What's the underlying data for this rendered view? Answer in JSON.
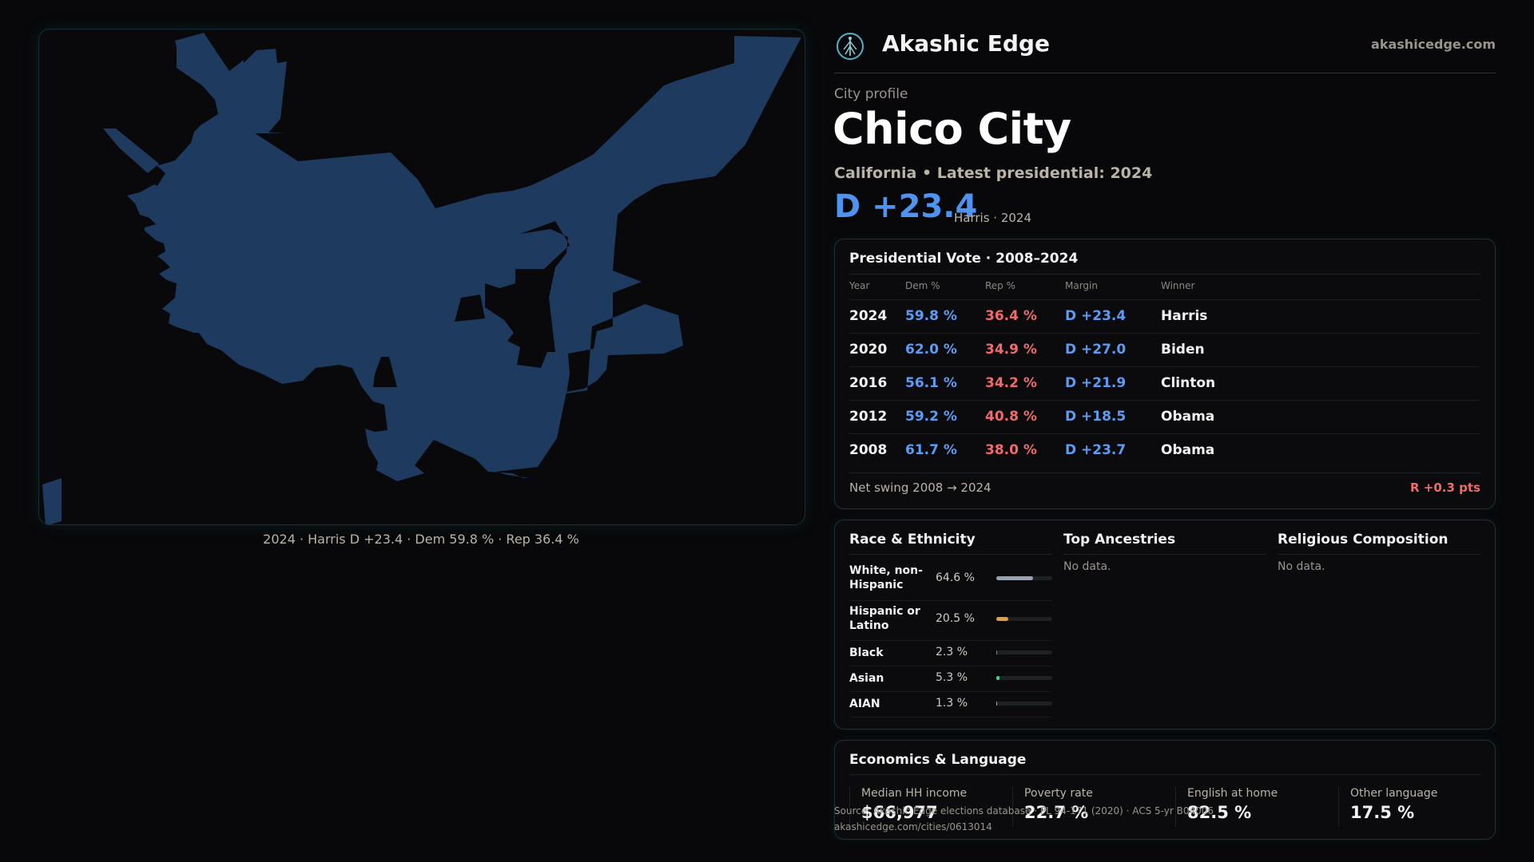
{
  "map": {
    "caption": "2024 · Harris D +23.4 · Dem 59.8 % · Rep 36.4 %",
    "fill_color": "#1e3a5f",
    "border_color": "#123238"
  },
  "brand": {
    "name": "Akashic Edge",
    "url": "akashicedge.com",
    "logo_icon": "tree-of-life-logo-icon"
  },
  "profile": {
    "eyebrow": "City profile",
    "title": "Chico City",
    "subtitle": "California • Latest presidential: 2024",
    "margin": "D +23.4",
    "margin_note": "Harris · 2024"
  },
  "vote": {
    "title": "Presidential Vote · 2008–2024",
    "headers": {
      "year": "Year",
      "dem": "Dem %",
      "rep": "Rep %",
      "margin": "Margin",
      "winner": "Winner"
    },
    "rows": [
      {
        "year": "2024",
        "dem": "59.8 %",
        "rep": "36.4 %",
        "margin": "D +23.4",
        "winner": "Harris"
      },
      {
        "year": "2020",
        "dem": "62.0 %",
        "rep": "34.9 %",
        "margin": "D +27.0",
        "winner": "Biden"
      },
      {
        "year": "2016",
        "dem": "56.1 %",
        "rep": "34.2 %",
        "margin": "D +21.9",
        "winner": "Clinton"
      },
      {
        "year": "2012",
        "dem": "59.2 %",
        "rep": "40.8 %",
        "margin": "D +18.5",
        "winner": "Obama"
      },
      {
        "year": "2008",
        "dem": "61.7 %",
        "rep": "38.0 %",
        "margin": "D +23.7",
        "winner": "Obama"
      }
    ],
    "swing_label": "Net swing 2008 → 2024",
    "swing_value": "R +0.3 pts",
    "colors": {
      "dem": "#5b9cf5",
      "rep": "#f06a6a"
    }
  },
  "demographics": {
    "race_title": "Race & Ethnicity",
    "race": [
      {
        "label": "White, non-Hispanic",
        "value": "64.6 %",
        "fraction": 0.646,
        "color": "#9aa3ad"
      },
      {
        "label": "Hispanic or Latino",
        "value": "20.5 %",
        "fraction": 0.205,
        "color": "#e0a040"
      },
      {
        "label": "Black",
        "value": "2.3 %",
        "fraction": 0.023,
        "color": "#8a6ad8"
      },
      {
        "label": "Asian",
        "value": "5.3 %",
        "fraction": 0.053,
        "color": "#3fd48a"
      },
      {
        "label": "AIAN",
        "value": "1.3 %",
        "fraction": 0.013,
        "color": "#c9a060"
      }
    ],
    "ancestries_title": "Top Ancestries",
    "ancestries_empty": "No data.",
    "religion_title": "Religious Composition",
    "religion_empty": "No data."
  },
  "economics": {
    "title": "Economics & Language",
    "cells": [
      {
        "label": "Median HH income",
        "value": "$66,977"
      },
      {
        "label": "Poverty rate",
        "value": "22.7 %"
      },
      {
        "label": "English at home",
        "value": "82.5 %"
      },
      {
        "label": "Other language",
        "value": "17.5 %"
      }
    ]
  },
  "source": {
    "line1": "Source: Akashic Edge elections database · PL 94-171 (2020) · ACS 5-yr B04006",
    "line2": "akashicedge.com/cities/0613014"
  }
}
